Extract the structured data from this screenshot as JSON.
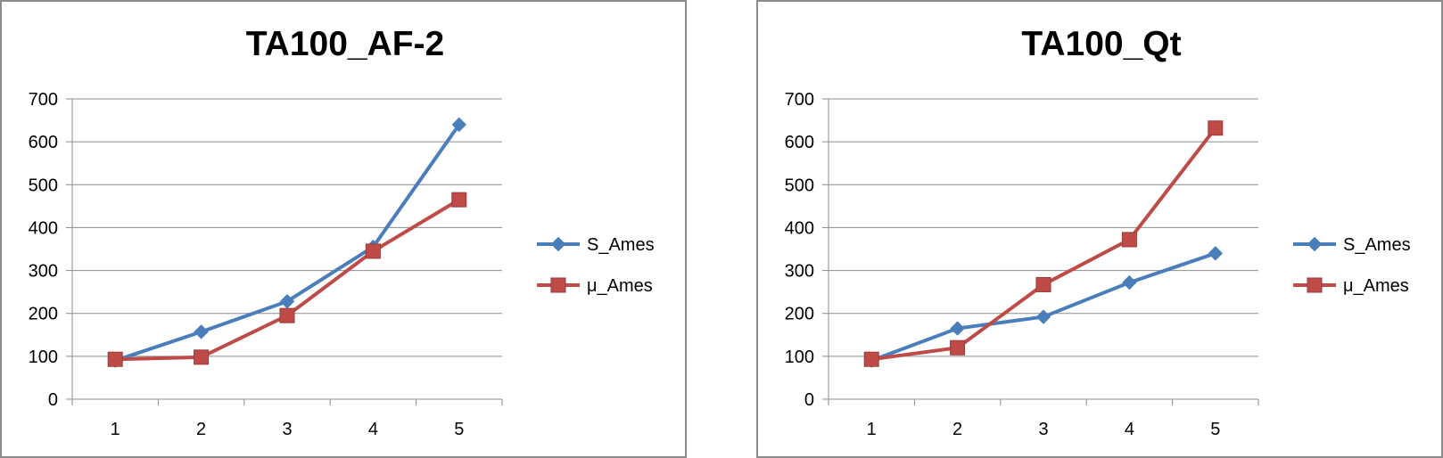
{
  "chart_data": [
    {
      "type": "line",
      "title": "TA100_AF-2",
      "categories": [
        "1",
        "2",
        "3",
        "4",
        "5"
      ],
      "series": [
        {
          "name": "S_Ames",
          "color": "#4a7ebb",
          "marker": "diamond",
          "values": [
            90,
            157,
            228,
            355,
            640
          ]
        },
        {
          "name": "μ_Ames",
          "color": "#be4b48",
          "marker": "square",
          "values": [
            93,
            98,
            195,
            345,
            465
          ]
        }
      ],
      "ylim": [
        0,
        700
      ],
      "yticks": [
        "0",
        "100",
        "200",
        "300",
        "400",
        "500",
        "600",
        "700"
      ],
      "grid": true,
      "legend": "right"
    },
    {
      "type": "line",
      "title": "TA100_Qt",
      "categories": [
        "1",
        "2",
        "3",
        "4",
        "5"
      ],
      "series": [
        {
          "name": "S_Ames",
          "color": "#4a7ebb",
          "marker": "diamond",
          "values": [
            90,
            165,
            192,
            272,
            340
          ]
        },
        {
          "name": "μ_Ames",
          "color": "#be4b48",
          "marker": "square",
          "values": [
            93,
            120,
            267,
            372,
            632
          ]
        }
      ],
      "ylim": [
        0,
        700
      ],
      "yticks": [
        "0",
        "100",
        "200",
        "300",
        "400",
        "500",
        "600",
        "700"
      ],
      "grid": true,
      "legend": "right"
    }
  ]
}
